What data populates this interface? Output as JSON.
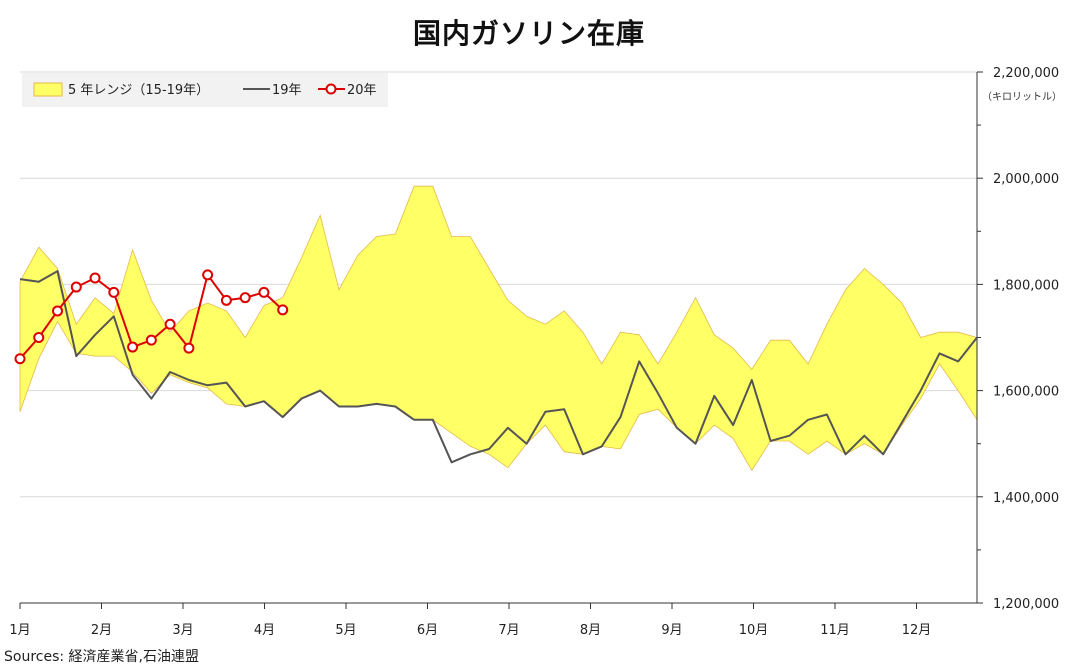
{
  "chart_data": {
    "type": "area",
    "title": "国内ガソリン在庫",
    "source": "Sources: 経済産業省,石油連盟",
    "unit_label": "（キロリットル）",
    "x_ticks": [
      "1月",
      "2月",
      "3月",
      "4月",
      "5月",
      "6月",
      "7月",
      "8月",
      "9月",
      "10月",
      "11月",
      "12月"
    ],
    "y_ticks": [
      "1,200,000",
      "1,400,000",
      "1,600,000",
      "1,800,000",
      "2,000,000",
      "2,200,000"
    ],
    "ylim": [
      1200000,
      2200000
    ],
    "xlim": [
      0,
      48
    ],
    "y_axis_position": "right",
    "grid": true,
    "legend_position": "top-left",
    "legend": [
      "5 年レンジ（15-19年）",
      "19年",
      "20年"
    ],
    "range_band": {
      "name": "5 年レンジ（15-19年）",
      "color": "#ffff66",
      "edge_color": "#e6b84a",
      "upper": [
        1805000,
        1870000,
        1830000,
        1725000,
        1775000,
        1745000,
        1865000,
        1770000,
        1710000,
        1750000,
        1765000,
        1750000,
        1700000,
        1760000,
        1775000,
        1850000,
        1930000,
        1790000,
        1855000,
        1890000,
        1895000,
        1985000,
        1985000,
        1890000,
        1890000,
        1830000,
        1770000,
        1740000,
        1725000,
        1750000,
        1710000,
        1650000,
        1710000,
        1705000,
        1650000,
        1710000,
        1775000,
        1705000,
        1680000,
        1640000,
        1695000,
        1695000,
        1650000,
        1725000,
        1790000,
        1830000,
        1800000,
        1765000,
        1700000,
        1710000,
        1710000,
        1700000
      ],
      "lower": [
        1560000,
        1660000,
        1730000,
        1670000,
        1665000,
        1665000,
        1635000,
        1595000,
        1630000,
        1615000,
        1605000,
        1575000,
        1570000,
        1580000,
        1550000,
        1585000,
        1600000,
        1570000,
        1570000,
        1575000,
        1570000,
        1545000,
        1545000,
        1520000,
        1495000,
        1480000,
        1455000,
        1500000,
        1535000,
        1485000,
        1480000,
        1495000,
        1490000,
        1555000,
        1565000,
        1530000,
        1500000,
        1535000,
        1510000,
        1450000,
        1505000,
        1505000,
        1480000,
        1505000,
        1480000,
        1500000,
        1480000,
        1535000,
        1585000,
        1650000,
        1600000,
        1545000
      ]
    },
    "series": [
      {
        "name": "19年",
        "color": "#555555",
        "values": [
          1810000,
          1805000,
          1825000,
          1665000,
          1705000,
          1740000,
          1630000,
          1585000,
          1635000,
          1620000,
          1610000,
          1615000,
          1570000,
          1580000,
          1550000,
          1585000,
          1600000,
          1570000,
          1570000,
          1575000,
          1570000,
          1545000,
          1545000,
          1465000,
          1480000,
          1490000,
          1530000,
          1500000,
          1560000,
          1565000,
          1480000,
          1495000,
          1550000,
          1655000,
          1595000,
          1530000,
          1500000,
          1590000,
          1535000,
          1620000,
          1505000,
          1515000,
          1545000,
          1555000,
          1480000,
          1515000,
          1480000,
          1540000,
          1600000,
          1670000,
          1655000,
          1700000
        ]
      },
      {
        "name": "20年",
        "color": "#dd0000",
        "marker": "circle",
        "values": [
          1660000,
          1700000,
          1750000,
          1795000,
          1812000,
          1785000,
          1682000,
          1695000,
          1725000,
          1680000,
          1818000,
          1770000,
          1775000,
          1785000,
          1752000
        ]
      }
    ]
  }
}
